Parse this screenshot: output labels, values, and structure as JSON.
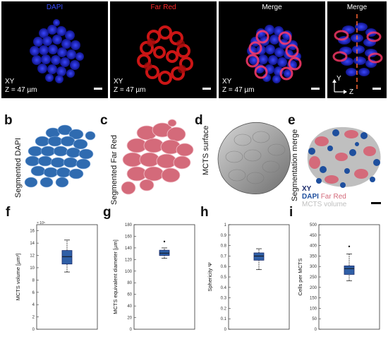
{
  "row_a": {
    "label": "a",
    "panels": [
      {
        "title": "DAPI",
        "title_color": "#3a4cff",
        "info_line1": "XY",
        "info_line2": "Z = 47 µm"
      },
      {
        "title": "Far Red",
        "title_color": "#ff2a2a",
        "info_line1": "XY",
        "info_line2": "Z = 47 µm"
      },
      {
        "title": "Merge",
        "title_color": "#ffffff",
        "info_line1": "XY",
        "info_line2": "Z = 47 µm"
      },
      {
        "title": "Merge",
        "title_color": "#ffffff",
        "axis_y": "Y",
        "axis_z": "Z"
      }
    ]
  },
  "row_b": {
    "panels": [
      {
        "label": "b",
        "caption": "Segmented DAPI",
        "color": "#2f6bb0"
      },
      {
        "label": "c",
        "caption": "Segmented Far Red",
        "color": "#d46a7a"
      },
      {
        "label": "d",
        "caption": "MCTS surface",
        "color": "#9a9a9a"
      },
      {
        "label": "e",
        "caption": "Segmentation merge",
        "legend_xy": "XY",
        "legend_dapi": "DAPI",
        "legend_farred": "Far Red",
        "legend_volume": "MCTS volume"
      }
    ]
  },
  "legend_colors": {
    "xy": "#1a2a6b",
    "dapi": "#1e4f9e",
    "farred": "#d46a7a",
    "volume": "#bfbfbf"
  },
  "chart_data": [
    {
      "label": "f",
      "type": "boxplot",
      "ylabel": "MCTS volume [µm³]",
      "multiplier": "× 10⁵",
      "yticks": [
        0,
        2,
        4,
        6,
        8,
        10,
        12,
        14,
        16
      ],
      "ylim": [
        0,
        17
      ],
      "whisker_low": 9.3,
      "q1": 10.6,
      "median": 11.8,
      "q3": 12.8,
      "whisker_high": 14.5,
      "outliers": []
    },
    {
      "label": "g",
      "type": "boxplot",
      "ylabel": "MCTS equivalent diameter [µm]",
      "yticks": [
        0,
        20,
        40,
        60,
        80,
        100,
        120,
        140,
        160,
        180
      ],
      "ylim": [
        0,
        180
      ],
      "whisker_low": 122,
      "q1": 127,
      "median": 131,
      "q3": 136,
      "whisker_high": 140,
      "outliers": [
        151
      ]
    },
    {
      "label": "h",
      "type": "boxplot",
      "ylabel": "Sphericity Ψ",
      "yticks": [
        0,
        0.1,
        0.2,
        0.3,
        0.4,
        0.5,
        0.6,
        0.7,
        0.8,
        0.9,
        1
      ],
      "ylim": [
        0,
        1
      ],
      "whisker_low": 0.57,
      "q1": 0.66,
      "median": 0.7,
      "q3": 0.73,
      "whisker_high": 0.77,
      "outliers": []
    },
    {
      "label": "i",
      "type": "boxplot",
      "ylabel": "Cells per MCTS",
      "yticks": [
        0,
        50,
        100,
        150,
        200,
        250,
        300,
        350,
        400,
        450,
        500
      ],
      "ylim": [
        0,
        500
      ],
      "whisker_low": 232,
      "q1": 262,
      "median": 290,
      "q3": 303,
      "whisker_high": 360,
      "outliers": [
        396
      ]
    }
  ]
}
